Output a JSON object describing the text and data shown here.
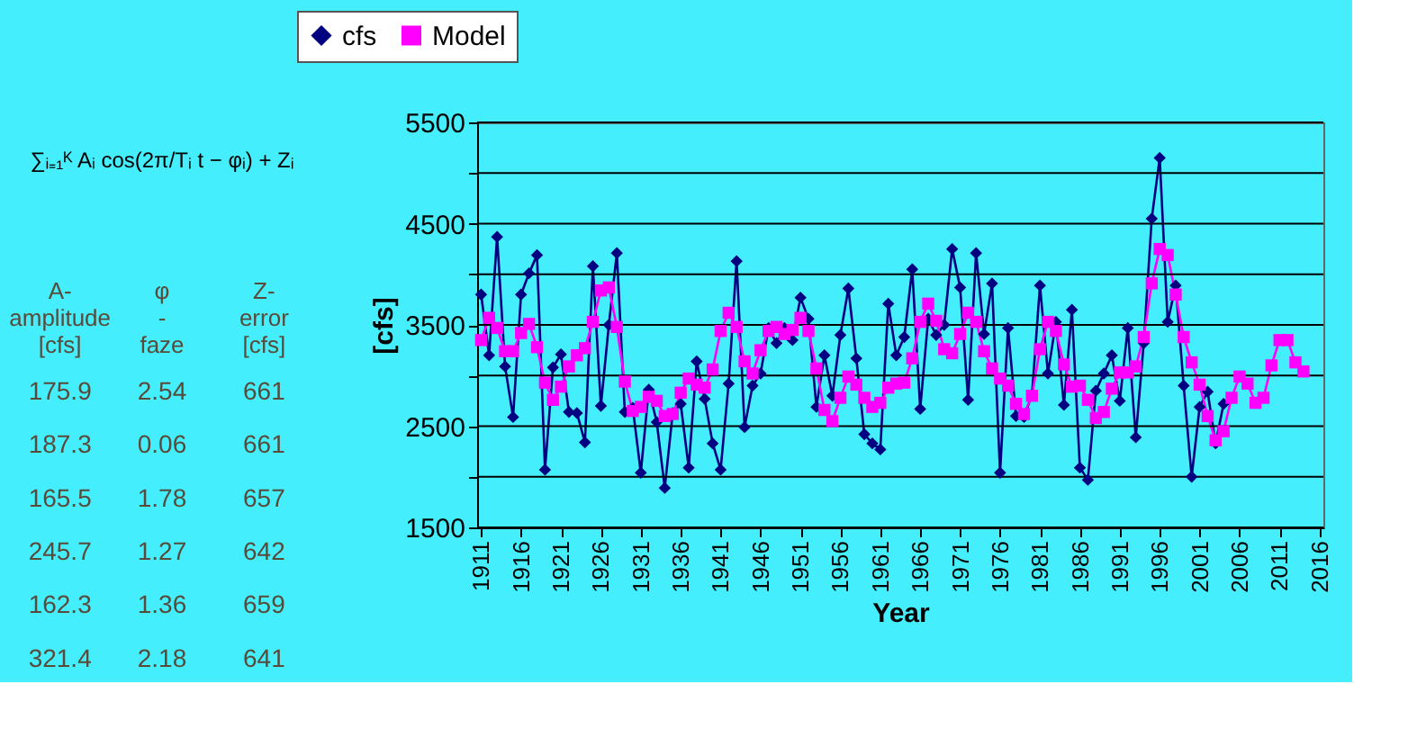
{
  "chart_data": {
    "type": "line",
    "xlabel": "Year",
    "ylabel": "[cfs]",
    "categories": [
      "1911",
      null,
      null,
      null,
      null,
      "1916",
      null,
      null,
      null,
      null,
      "1921",
      null,
      null,
      null,
      null,
      "1926",
      null,
      null,
      null,
      null,
      "1931",
      null,
      null,
      null,
      null,
      "1936",
      null,
      null,
      null,
      null,
      "1941",
      null,
      null,
      null,
      null,
      "1946",
      null,
      null,
      null,
      null,
      "1951",
      null,
      null,
      null,
      null,
      "1956",
      null,
      null,
      null,
      null,
      "1961",
      null,
      null,
      null,
      null,
      "1966",
      null,
      null,
      null,
      null,
      "1971",
      null,
      null,
      null,
      null,
      "1976",
      null,
      null,
      null,
      null,
      "1981",
      null,
      null,
      null,
      null,
      "1986",
      null,
      null,
      null,
      null,
      "1991",
      null,
      null,
      null,
      null,
      "1996",
      null,
      null,
      null,
      null,
      "2001",
      null,
      null,
      null,
      null,
      "2006",
      null,
      null,
      null,
      null,
      "2011",
      null,
      null,
      null,
      null,
      "2016"
    ],
    "ylim": [
      1500,
      5500
    ],
    "yticks": [
      1500,
      {
        "value": 2000,
        "label": null
      },
      2500,
      {
        "value": 3000,
        "label": null
      },
      3500,
      {
        "value": 4000,
        "label": null
      },
      4500,
      {
        "value": 5000,
        "label": null
      },
      5500
    ],
    "grid": "y",
    "legend": "top",
    "series": [
      {
        "name": "cfs",
        "color": "#000080",
        "marker": "diamond",
        "values": [
          3800,
          3200,
          4370,
          3090,
          2590,
          3800,
          4010,
          4190,
          2070,
          3080,
          3210,
          2640,
          2630,
          2340,
          4080,
          2700,
          3500,
          4210,
          2640,
          2680,
          2040,
          2860,
          2540,
          1890,
          2630,
          2720,
          2090,
          3140,
          2770,
          2330,
          2070,
          2920,
          4130,
          2490,
          2900,
          3020,
          3470,
          3320,
          3470,
          3350,
          3770,
          3560,
          2690,
          3200,
          2800,
          3400,
          3860,
          3170,
          2420,
          2330,
          2270,
          3710,
          3200,
          3380,
          4050,
          2670,
          3560,
          3400,
          3500,
          4250,
          3870,
          2760,
          4210,
          3410,
          3910,
          2040,
          3470,
          2600,
          2590,
          2810,
          3890,
          3020,
          3530,
          2710,
          3650,
          2090,
          1970,
          2850,
          3020,
          3200,
          2750,
          3470,
          2390,
          3320,
          4550,
          5150,
          3530,
          3890,
          2900,
          2000,
          2690,
          2840,
          2330,
          2720,
          null,
          null,
          null,
          null,
          null,
          null,
          null,
          null,
          null,
          null,
          null,
          null
        ]
      },
      {
        "name": "Model",
        "color": "#ff00ff",
        "marker": "square",
        "values": [
          3350,
          3570,
          3470,
          3240,
          3240,
          3420,
          3510,
          3280,
          2930,
          2760,
          2890,
          3090,
          3200,
          3270,
          3530,
          3840,
          3870,
          3480,
          2940,
          2650,
          2690,
          2790,
          2750,
          2600,
          2620,
          2830,
          2970,
          2910,
          2880,
          3060,
          3440,
          3620,
          3480,
          3140,
          3020,
          3250,
          3440,
          3480,
          3410,
          3450,
          3570,
          3440,
          3070,
          2660,
          2550,
          2780,
          2990,
          2910,
          2780,
          2690,
          2730,
          2880,
          2920,
          2930,
          3170,
          3530,
          3710,
          3540,
          3260,
          3220,
          3410,
          3620,
          3530,
          3240,
          3070,
          2970,
          2900,
          2720,
          2620,
          2800,
          3260,
          3530,
          3440,
          3110,
          2890,
          2900,
          2760,
          2580,
          2640,
          2870,
          3030,
          3030,
          3090,
          3380,
          3910,
          4250,
          4190,
          3800,
          3380,
          3130,
          2910,
          2600,
          2360,
          2450,
          2780,
          2990,
          2920,
          2730,
          2780,
          3100,
          3350,
          3350,
          3130,
          3040,
          null,
          null
        ]
      }
    ],
    "annotations": [
      "∑ᵢ₌₁ᴷ Aᵢ cos(2π/Tᵢ t − φᵢ) + Zᵢ",
      "A- amplitude [cfs]",
      "φ - faze",
      "Z- error [cfs]",
      "175.9",
      "2.54",
      "661",
      "187.3",
      "0.06",
      "661",
      "165.5",
      "1.78",
      "657",
      "245.7",
      "1.27",
      "642",
      "162.3",
      "1.36",
      "659",
      "321.4",
      "2.18",
      "641"
    ]
  }
}
